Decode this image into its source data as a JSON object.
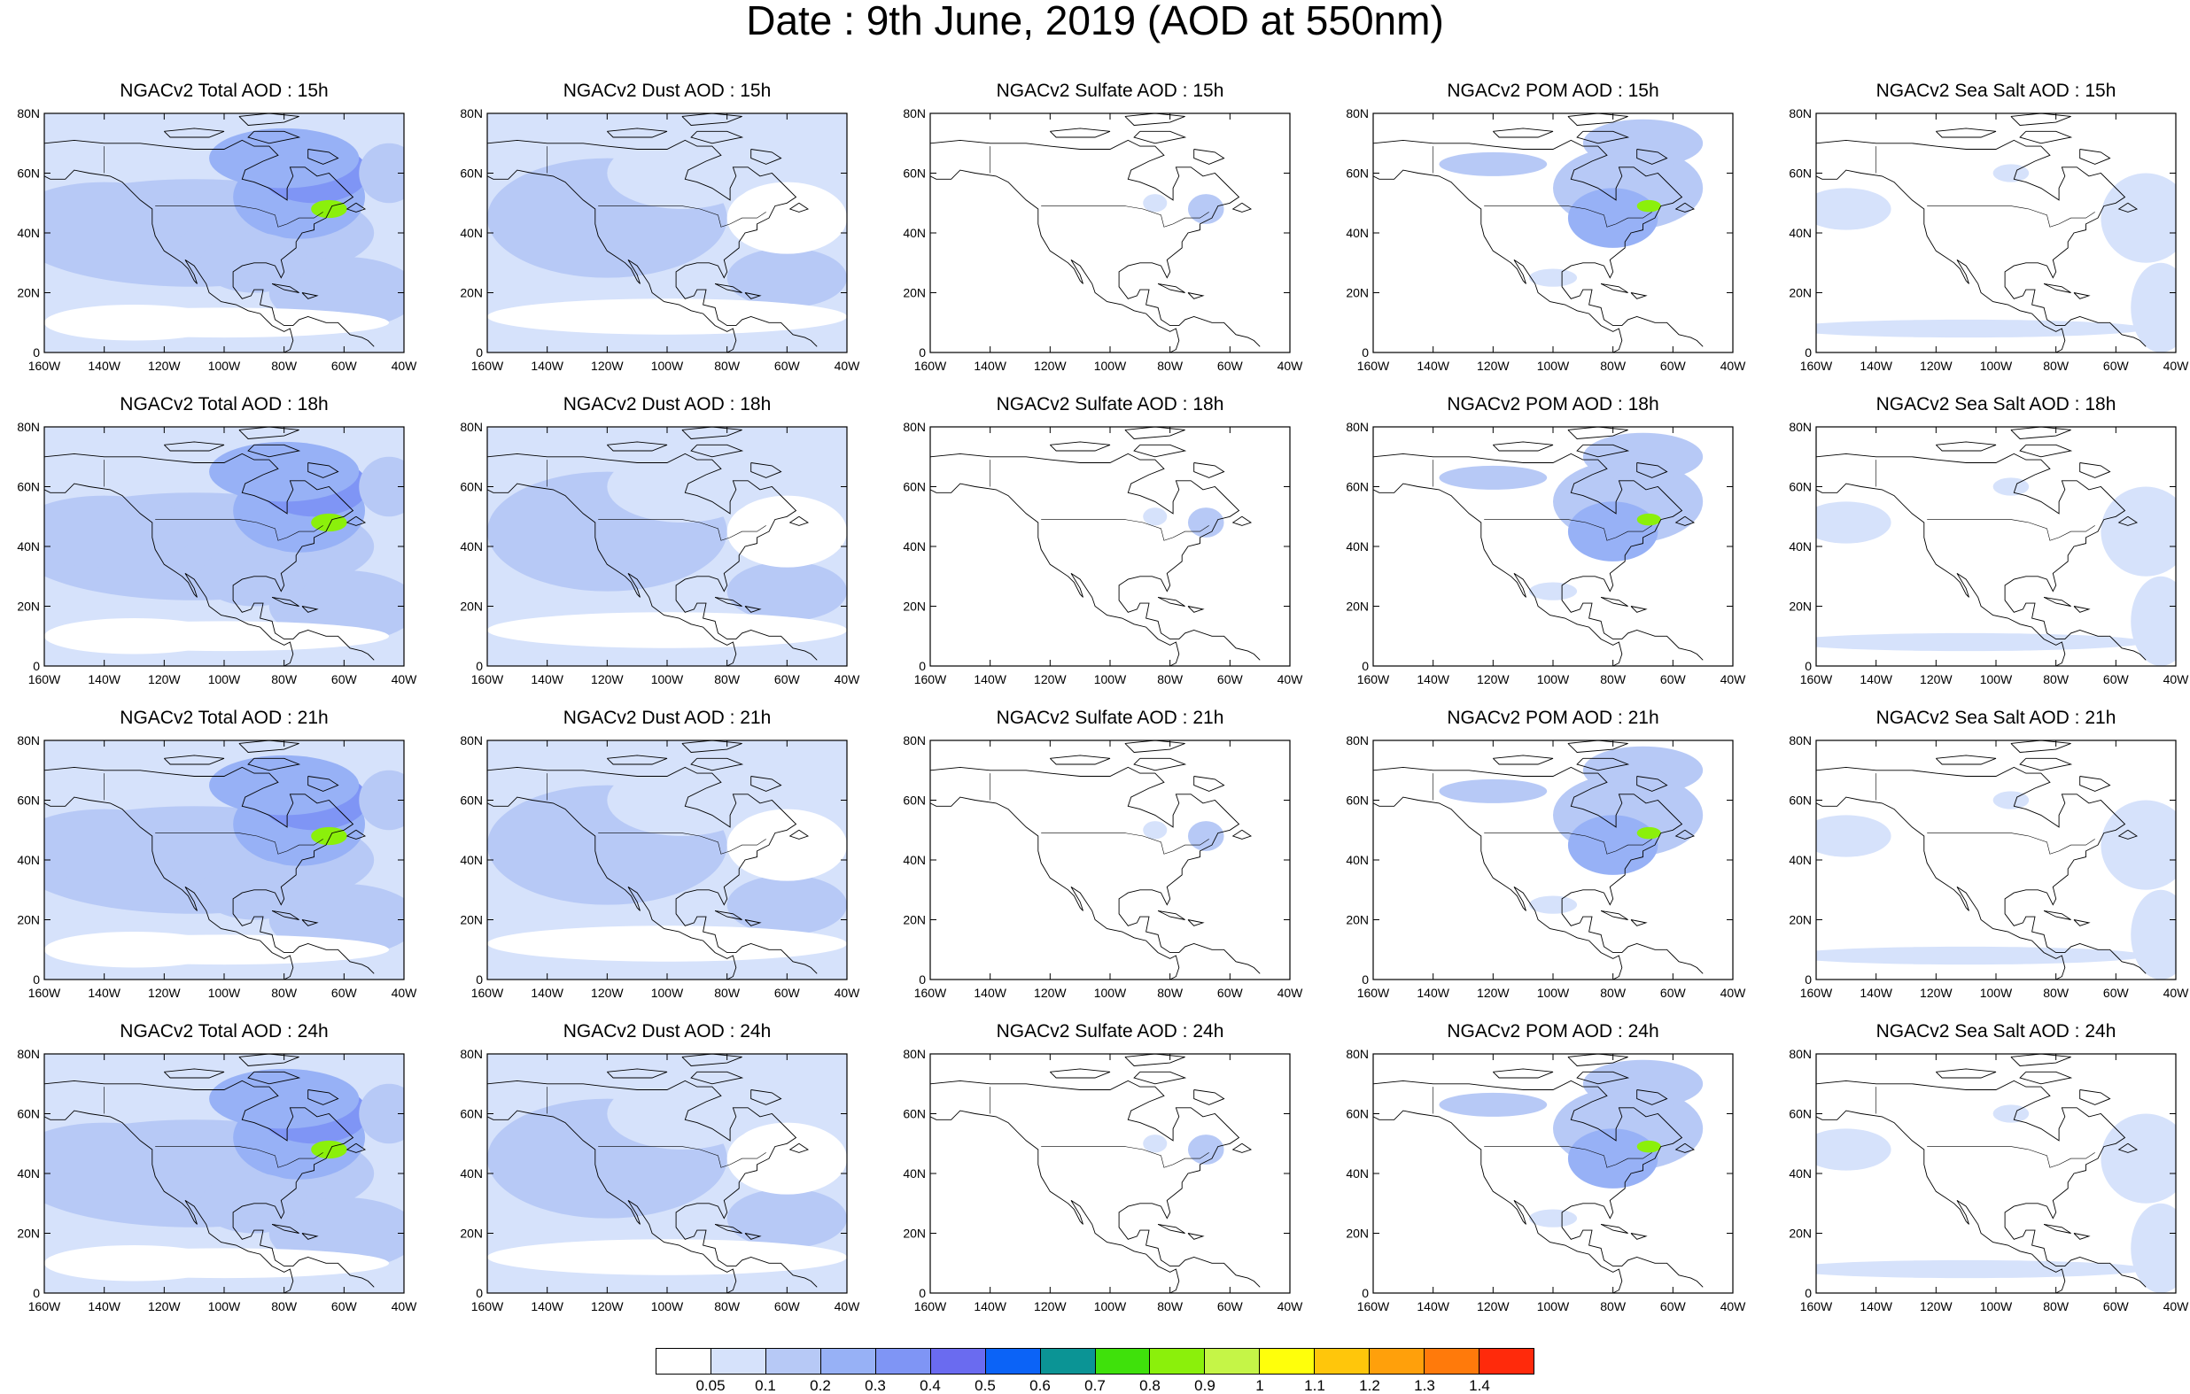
{
  "figure_title": "Date : 9th June, 2019 (AOD at 550nm)",
  "axes": {
    "lat_ticks": [
      "80N",
      "60N",
      "40N",
      "20N",
      "0"
    ],
    "lon_ticks": [
      "160W",
      "140W",
      "120W",
      "100W",
      "80W",
      "60W",
      "40W"
    ],
    "lon_range": [
      -160,
      -40
    ],
    "lat_range": [
      0,
      80
    ]
  },
  "panels": [
    {
      "title": "NGACv2 Total AOD : 15h",
      "species": "total"
    },
    {
      "title": "NGACv2 Dust AOD : 15h",
      "species": "dust"
    },
    {
      "title": "NGACv2 Sulfate AOD : 15h",
      "species": "sulfate"
    },
    {
      "title": "NGACv2 POM AOD : 15h",
      "species": "pom"
    },
    {
      "title": "NGACv2 Sea Salt AOD : 15h",
      "species": "seasalt"
    },
    {
      "title": "NGACv2 Total AOD : 18h",
      "species": "total"
    },
    {
      "title": "NGACv2 Dust AOD : 18h",
      "species": "dust"
    },
    {
      "title": "NGACv2 Sulfate AOD : 18h",
      "species": "sulfate"
    },
    {
      "title": "NGACv2 POM AOD : 18h",
      "species": "pom"
    },
    {
      "title": "NGACv2 Sea Salt AOD : 18h",
      "species": "seasalt"
    },
    {
      "title": "NGACv2 Total AOD : 21h",
      "species": "total"
    },
    {
      "title": "NGACv2 Dust AOD : 21h",
      "species": "dust"
    },
    {
      "title": "NGACv2 Sulfate AOD : 21h",
      "species": "sulfate"
    },
    {
      "title": "NGACv2 POM AOD : 21h",
      "species": "pom"
    },
    {
      "title": "NGACv2 Sea Salt AOD : 21h",
      "species": "seasalt"
    },
    {
      "title": "NGACv2 Total AOD : 24h",
      "species": "total"
    },
    {
      "title": "NGACv2 Dust AOD : 24h",
      "species": "dust"
    },
    {
      "title": "NGACv2 Sulfate AOD : 24h",
      "species": "sulfate"
    },
    {
      "title": "NGACv2 POM AOD : 24h",
      "species": "pom"
    },
    {
      "title": "NGACv2 Sea Salt  AOD : 24h",
      "species": "seasalt"
    }
  ],
  "colorbar": {
    "colors": [
      "#ffffff",
      "#d6e2fb",
      "#b7c9f6",
      "#97b1f6",
      "#7f95f5",
      "#6a6bf0",
      "#0b63f7",
      "#0b9495",
      "#3fe10b",
      "#8bf00b",
      "#c5f547",
      "#ffff0b",
      "#ffc60b",
      "#ffa00b",
      "#ff7a0b",
      "#ff2a0b"
    ],
    "labels": [
      "0.05",
      "0.1",
      "0.2",
      "0.3",
      "0.4",
      "0.5",
      "0.6",
      "0.7",
      "0.8",
      "0.9",
      "1",
      "1.1",
      "1.2",
      "1.3",
      "1.4"
    ]
  }
}
